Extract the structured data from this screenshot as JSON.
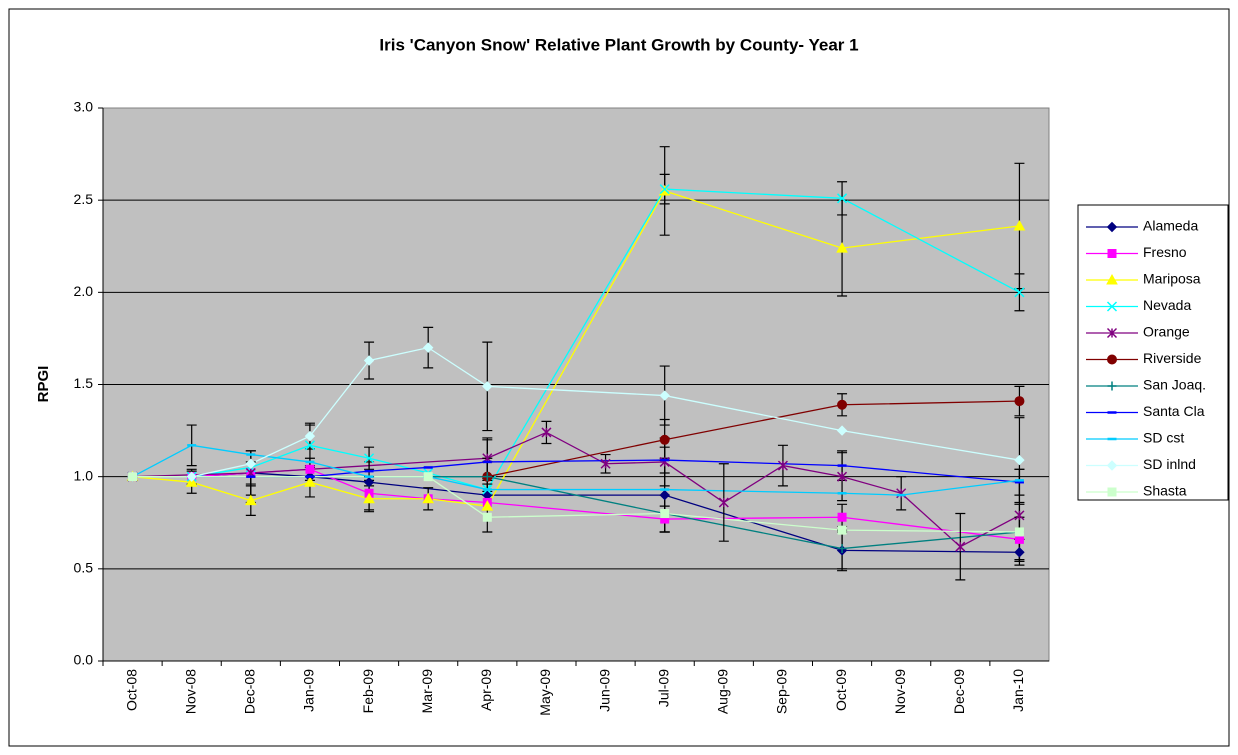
{
  "chart_data": {
    "type": "line",
    "title": "Iris 'Canyon Snow' Relative Plant Growth by County- Year 1",
    "y_label": "RPGI",
    "categories": [
      "Oct-08",
      "Nov-08",
      "Dec-08",
      "Jan-09",
      "Feb-09",
      "Mar-09",
      "Apr-09",
      "May-09",
      "Jun-09",
      "Jul-09",
      "Aug-09",
      "Sep-09",
      "Oct-09",
      "Nov-09",
      "Dec-09",
      "Jan-10"
    ],
    "ylim": [
      0,
      3
    ],
    "yticks": [
      {
        "value": 0,
        "label": "0.0"
      },
      {
        "value": 0.5,
        "label": "0.5"
      },
      {
        "value": 1,
        "label": "1.0"
      },
      {
        "value": 1.5,
        "label": "1.5"
      },
      {
        "value": 2,
        "label": "2.0"
      },
      {
        "value": 2.5,
        "label": "2.5"
      },
      {
        "value": 3,
        "label": "3.0"
      }
    ],
    "grid": true,
    "legend": "right",
    "series": [
      {
        "name": "Alameda",
        "color": "#000080",
        "marker": "diamond",
        "x": [
          "Oct-08",
          "Nov-08",
          "Dec-08",
          "Jan-09",
          "Feb-09",
          "Apr-09",
          "Jul-09",
          "Oct-09",
          "Jan-10"
        ],
        "values": [
          1.0,
          1.0,
          1.02,
          1.0,
          0.97,
          0.9,
          0.9,
          0.6,
          0.59
        ],
        "errors": [
          null,
          null,
          0.06,
          null,
          null,
          null,
          0.2,
          0.1,
          0.07
        ]
      },
      {
        "name": "Fresno",
        "color": "#FF00FF",
        "marker": "square",
        "x": [
          "Oct-08",
          "Nov-08",
          "Dec-08",
          "Jan-09",
          "Feb-09",
          "Mar-09",
          "Apr-09",
          "Jul-09",
          "Oct-09",
          "Jan-10"
        ],
        "values": [
          1.0,
          1.0,
          1.02,
          1.04,
          0.91,
          0.88,
          0.86,
          0.77,
          0.78,
          0.66
        ],
        "errors": [
          null,
          null,
          null,
          0.06,
          0.09,
          null,
          null,
          0.07,
          0.07,
          0.12
        ]
      },
      {
        "name": "Mariposa",
        "color": "#FFFF00",
        "marker": "triangle",
        "x": [
          "Oct-08",
          "Nov-08",
          "Dec-08",
          "Jan-09",
          "Feb-09",
          "Mar-09",
          "Apr-09",
          "Jul-09",
          "Oct-09",
          "Jan-10"
        ],
        "values": [
          1.0,
          0.97,
          0.87,
          0.97,
          0.88,
          0.88,
          0.84,
          2.55,
          2.24,
          2.36
        ],
        "errors": [
          null,
          0.06,
          0.08,
          0.08,
          0.07,
          0.06,
          0.14,
          0.24,
          0.26,
          0.34
        ]
      },
      {
        "name": "Nevada",
        "color": "#00FFFF",
        "marker": "x",
        "x": [
          "Oct-08",
          "Nov-08",
          "Dec-08",
          "Jan-09",
          "Feb-09",
          "Mar-09",
          "Apr-09",
          "Jul-09",
          "Oct-09",
          "Jan-10"
        ],
        "values": [
          1.0,
          1.0,
          1.05,
          1.17,
          1.1,
          1.02,
          0.93,
          2.56,
          2.51,
          2.0
        ],
        "errors": [
          null,
          null,
          null,
          0.11,
          0.06,
          null,
          null,
          0.08,
          0.09,
          0.1
        ]
      },
      {
        "name": "Orange",
        "color": "#800080",
        "marker": "star",
        "x": [
          "Oct-08",
          "Dec-08",
          "Apr-09",
          "May-09",
          "Jun-09",
          "Jul-09",
          "Aug-09",
          "Sep-09",
          "Oct-09",
          "Nov-09",
          "Dec-09",
          "Jan-10"
        ],
        "values": [
          1.0,
          1.02,
          1.1,
          1.24,
          1.07,
          1.08,
          0.86,
          1.06,
          1.0,
          0.91,
          0.62,
          0.79
        ],
        "errors": [
          null,
          0.12,
          0.11,
          0.06,
          0.05,
          0.13,
          0.21,
          0.11,
          0.13,
          0.09,
          0.18,
          0.25
        ]
      },
      {
        "name": "Riverside",
        "color": "#800000",
        "marker": "circle",
        "x": [
          "Apr-09",
          "Jul-09",
          "Oct-09",
          "Jan-10"
        ],
        "values": [
          1.0,
          1.2,
          1.39,
          1.41
        ],
        "errors": [
          0.1,
          0.11,
          0.06,
          0.08
        ]
      },
      {
        "name": "San Joaq.",
        "color": "#008080",
        "marker": "plus",
        "x": [
          "Oct-08",
          "Apr-09",
          "Jul-09",
          "Oct-09",
          "Jan-10"
        ],
        "values": [
          1.0,
          1.0,
          0.8,
          0.61,
          0.7
        ],
        "errors": [
          null,
          0.08,
          0.1,
          0.12,
          0.15
        ]
      },
      {
        "name": "Santa Cla",
        "color": "#0000FF",
        "marker": "dash",
        "x": [
          "Oct-08",
          "Nov-08",
          "Dec-08",
          "Jan-09",
          "Feb-09",
          "Mar-09",
          "Apr-09",
          "Jul-09",
          "Oct-09",
          "Jan-10"
        ],
        "values": [
          1.0,
          1.0,
          1.0,
          1.0,
          1.03,
          1.05,
          1.08,
          1.09,
          1.06,
          0.97
        ],
        "errors": [
          null,
          0.04,
          0.14,
          0.05,
          0.05,
          null,
          0.12,
          0.07,
          0.08,
          0.07
        ]
      },
      {
        "name": "SD cst",
        "color": "#00CCFF",
        "marker": "dash",
        "x": [
          "Oct-08",
          "Nov-08",
          "Dec-08",
          "Jan-09",
          "Feb-09",
          "Mar-09",
          "Apr-09",
          "Jul-09",
          "Oct-09",
          "Nov-09",
          "Jan-10"
        ],
        "values": [
          1.0,
          1.17,
          1.12,
          1.08,
          1.0,
          1.0,
          0.93,
          0.93,
          0.91,
          0.9,
          0.98
        ],
        "errors": [
          null,
          0.11,
          null,
          null,
          null,
          null,
          null,
          null,
          null,
          null,
          null
        ]
      },
      {
        "name": "SD inlnd",
        "color": "#CCFFFF",
        "marker": "diamond",
        "x": [
          "Oct-08",
          "Nov-08",
          "Dec-08",
          "Jan-09",
          "Feb-09",
          "Mar-09",
          "Apr-09",
          "Jul-09",
          "Oct-09",
          "Jan-10"
        ],
        "values": [
          1.0,
          1.0,
          1.07,
          1.22,
          1.63,
          1.7,
          1.49,
          1.44,
          1.25,
          1.09
        ],
        "errors": [
          null,
          null,
          null,
          0.07,
          0.1,
          0.11,
          0.24,
          0.16,
          null,
          0.23
        ]
      },
      {
        "name": "Shasta",
        "color": "#CCFFCC",
        "marker": "square",
        "x": [
          "Oct-08",
          "Mar-09",
          "Apr-09",
          "Jul-09",
          "Oct-09",
          "Jan-10"
        ],
        "values": [
          1.0,
          1.0,
          0.78,
          0.8,
          0.71,
          0.7
        ],
        "errors": [
          null,
          null,
          null,
          null,
          null,
          null
        ]
      }
    ]
  }
}
